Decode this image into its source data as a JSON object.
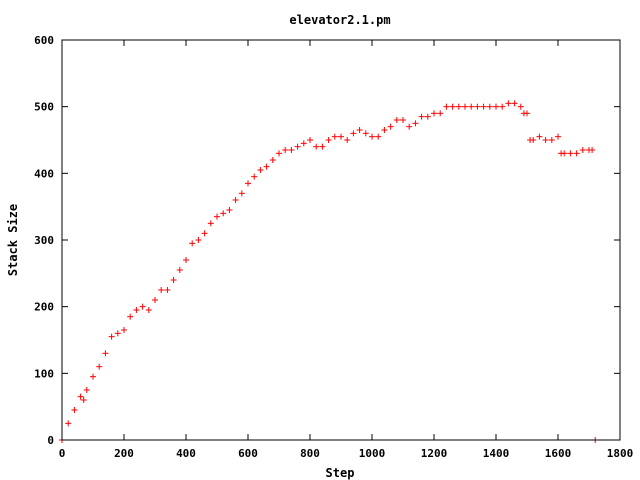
{
  "chart_data": {
    "type": "scatter",
    "title": "elevator2.1.pm",
    "xlabel": "Step",
    "ylabel": "Stack Size",
    "xlim": [
      0,
      1800
    ],
    "ylim": [
      0,
      600
    ],
    "x_ticks": [
      0,
      200,
      400,
      600,
      800,
      1000,
      1200,
      1400,
      1600,
      1800
    ],
    "y_ticks": [
      0,
      100,
      200,
      300,
      400,
      500,
      600
    ],
    "x_tick_labels": [
      "0",
      "200",
      "400",
      "600",
      "800",
      "1000",
      "1200",
      "1400",
      "1600",
      "1800"
    ],
    "y_tick_labels": [
      "0",
      "100",
      "200",
      "300",
      "400",
      "500",
      "600"
    ],
    "grid": false,
    "legend": "none",
    "marker": "+",
    "series": [
      {
        "color": "#ff0000",
        "x": [
          0,
          20,
          40,
          60,
          70,
          80,
          100,
          120,
          140,
          160,
          180,
          200,
          220,
          240,
          260,
          280,
          300,
          320,
          340,
          360,
          380,
          400,
          420,
          440,
          460,
          480,
          500,
          520,
          540,
          560,
          580,
          600,
          620,
          640,
          660,
          680,
          700,
          720,
          740,
          760,
          780,
          800,
          820,
          840,
          860,
          880,
          900,
          920,
          940,
          960,
          980,
          1000,
          1020,
          1040,
          1060,
          1080,
          1100,
          1120,
          1140,
          1160,
          1180,
          1200,
          1220,
          1240,
          1260,
          1280,
          1300,
          1320,
          1340,
          1360,
          1380,
          1400,
          1420,
          1440,
          1460,
          1480,
          1490,
          1500,
          1510,
          1520,
          1540,
          1560,
          1580,
          1600,
          1610,
          1620,
          1640,
          1660,
          1680,
          1700,
          1710,
          1720
        ],
        "y": [
          0,
          25,
          45,
          65,
          60,
          75,
          95,
          110,
          130,
          155,
          160,
          165,
          185,
          195,
          200,
          195,
          210,
          225,
          225,
          240,
          255,
          270,
          295,
          300,
          310,
          325,
          335,
          340,
          345,
          360,
          370,
          385,
          395,
          405,
          410,
          420,
          430,
          435,
          435,
          440,
          445,
          450,
          440,
          440,
          450,
          455,
          455,
          450,
          460,
          465,
          460,
          455,
          455,
          465,
          470,
          480,
          480,
          470,
          475,
          485,
          485,
          490,
          490,
          500,
          500,
          500,
          500,
          500,
          500,
          500,
          500,
          500,
          500,
          505,
          505,
          500,
          490,
          490,
          450,
          450,
          455,
          450,
          450,
          455,
          430,
          430,
          430,
          430,
          435,
          435,
          435,
          0
        ]
      }
    ]
  }
}
